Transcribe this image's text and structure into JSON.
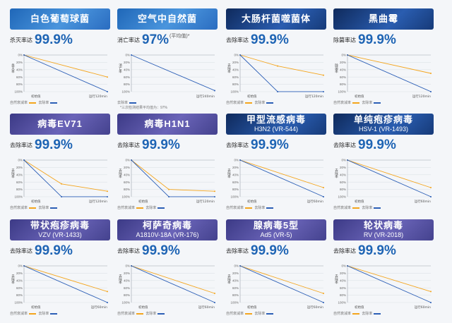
{
  "colors": {
    "declining_line": "#f4a51c",
    "reference_line": "#2c5fb6",
    "accent": "#1e64b4"
  },
  "tick_labels": [
    "0%",
    "20%",
    "40%",
    "60%",
    "80%",
    "100%"
  ],
  "legend_labels": {
    "orange": "自然衰减率",
    "blue": "去除率"
  },
  "cards": [
    {
      "title": "白色葡萄球菌",
      "subtitle": "",
      "banner_style": "blue",
      "rate_label": "杀灭率达",
      "rate_value": "99.9%",
      "rate_suffix": "",
      "y_axis_label": "杀灭率",
      "x_start": "初始值",
      "x_end": "运行120min",
      "note": "",
      "chart_data": {
        "type": "line",
        "series": [
          {
            "color": "orange",
            "values": [
              0,
              60
            ]
          },
          {
            "color": "blue",
            "values": [
              0,
              99.9
            ]
          }
        ]
      }
    },
    {
      "title": "空气中自然菌",
      "subtitle": "",
      "banner_style": "blue",
      "rate_label": "消亡率达",
      "rate_value": "97%",
      "rate_suffix": "(平均值)*",
      "y_axis_label": "消亡率",
      "x_start": "",
      "x_end": "运行240min",
      "note": "*三次检测结果平均值为：97%",
      "chart_data": {
        "type": "line",
        "series": [
          {
            "color": "blue",
            "values": [
              0,
              97
            ]
          }
        ]
      }
    },
    {
      "title": "大肠杆菌噬菌体",
      "subtitle": "",
      "banner_style": "navy",
      "rate_label": "去除率达",
      "rate_value": "99.9%",
      "rate_suffix": "",
      "y_axis_label": "去除率",
      "x_start": "初始值",
      "x_end": "运行120min",
      "note": "",
      "chart_data": {
        "type": "line",
        "series": [
          {
            "color": "orange",
            "values": [
              0,
              30,
              55
            ]
          },
          {
            "color": "blue",
            "values": [
              0,
              99.9,
              99.9
            ]
          }
        ]
      }
    },
    {
      "title": "黑曲霉",
      "subtitle": "",
      "banner_style": "navy",
      "rate_label": "除菌率达",
      "rate_value": "99.9%",
      "rate_suffix": "",
      "y_axis_label": "除菌率",
      "x_start": "初始值",
      "x_end": "运行120min",
      "note": "",
      "chart_data": {
        "type": "line",
        "series": [
          {
            "color": "orange",
            "values": [
              0,
              50
            ]
          },
          {
            "color": "blue",
            "values": [
              0,
              99.9
            ]
          }
        ]
      }
    },
    {
      "title": "病毒EV71",
      "subtitle": "",
      "banner_style": "purple",
      "rate_label": "去除率达",
      "rate_value": "99.9%",
      "rate_suffix": "",
      "y_axis_label": "去除率",
      "x_start": "初始值",
      "x_end": "运行120min",
      "note": "",
      "chart_data": {
        "type": "line",
        "series": [
          {
            "color": "orange",
            "values": [
              0,
              65,
              85
            ]
          },
          {
            "color": "blue",
            "values": [
              0,
              99.9,
              99.9
            ]
          }
        ]
      }
    },
    {
      "title": "病毒H1N1",
      "subtitle": "",
      "banner_style": "purple",
      "rate_label": "去除率达",
      "rate_value": "99.9%",
      "rate_suffix": "",
      "y_axis_label": "去除率",
      "x_start": "初始值",
      "x_end": "运行120min",
      "note": "",
      "chart_data": {
        "type": "line",
        "series": [
          {
            "color": "orange",
            "values": [
              0,
              80,
              85
            ]
          },
          {
            "color": "blue",
            "values": [
              0,
              99.9,
              99.9
            ]
          }
        ]
      }
    },
    {
      "title": "甲型流感病毒",
      "subtitle": "H3N2 (VR-544)",
      "banner_style": "navy",
      "rate_label": "去除率达",
      "rate_value": "99.9%",
      "rate_suffix": "",
      "y_axis_label": "去除率",
      "x_start": "初始值",
      "x_end": "运行60min",
      "note": "",
      "chart_data": {
        "type": "line",
        "series": [
          {
            "color": "orange",
            "values": [
              0,
              75
            ]
          },
          {
            "color": "blue",
            "values": [
              0,
              99.9
            ]
          }
        ]
      }
    },
    {
      "title": "单纯疱疹病毒",
      "subtitle": "HSV-1 (VR-1493)",
      "banner_style": "navy",
      "rate_label": "去除率达",
      "rate_value": "99.9%",
      "rate_suffix": "",
      "y_axis_label": "去除率",
      "x_start": "初始值",
      "x_end": "运行60min",
      "note": "",
      "chart_data": {
        "type": "line",
        "series": [
          {
            "color": "orange",
            "values": [
              0,
              75
            ]
          },
          {
            "color": "blue",
            "values": [
              0,
              99.9
            ]
          }
        ]
      }
    },
    {
      "title": "带状疱疹病毒",
      "subtitle": "VZV (VR-1433)",
      "banner_style": "purple",
      "rate_label": "去除率达",
      "rate_value": "99.9%",
      "rate_suffix": "",
      "y_axis_label": "去除率",
      "x_start": "初始值",
      "x_end": "运行60min",
      "note": "",
      "chart_data": {
        "type": "line",
        "series": [
          {
            "color": "orange",
            "values": [
              0,
              70
            ]
          },
          {
            "color": "blue",
            "values": [
              0,
              99.9
            ]
          }
        ]
      }
    },
    {
      "title": "柯萨奇病毒",
      "subtitle": "A1810V-18A (VR-176)",
      "banner_style": "purple",
      "rate_label": "去除率达",
      "rate_value": "99.9%",
      "rate_suffix": "",
      "y_axis_label": "去除率",
      "x_start": "初始值",
      "x_end": "运行60min",
      "note": "",
      "chart_data": {
        "type": "line",
        "series": [
          {
            "color": "orange",
            "values": [
              0,
              75
            ]
          },
          {
            "color": "blue",
            "values": [
              0,
              99.9
            ]
          }
        ]
      }
    },
    {
      "title": "腺病毒5型",
      "subtitle": "Ad5 (VR-5)",
      "banner_style": "purple",
      "rate_label": "去除率达",
      "rate_value": "99.9%",
      "rate_suffix": "",
      "y_axis_label": "去除率",
      "x_start": "初始值",
      "x_end": "运行60min",
      "note": "",
      "chart_data": {
        "type": "line",
        "series": [
          {
            "color": "orange",
            "values": [
              0,
              75
            ]
          },
          {
            "color": "blue",
            "values": [
              0,
              99.9
            ]
          }
        ]
      }
    },
    {
      "title": "轮状病毒",
      "subtitle": "RV (VR-2018)",
      "banner_style": "purple",
      "rate_label": "去除率达",
      "rate_value": "99.9%",
      "rate_suffix": "",
      "y_axis_label": "去除率",
      "x_start": "初始值",
      "x_end": "运行60min",
      "note": "",
      "chart_data": {
        "type": "line",
        "series": [
          {
            "color": "orange",
            "values": [
              0,
              70
            ]
          },
          {
            "color": "blue",
            "values": [
              0,
              99.9
            ]
          }
        ]
      }
    }
  ]
}
